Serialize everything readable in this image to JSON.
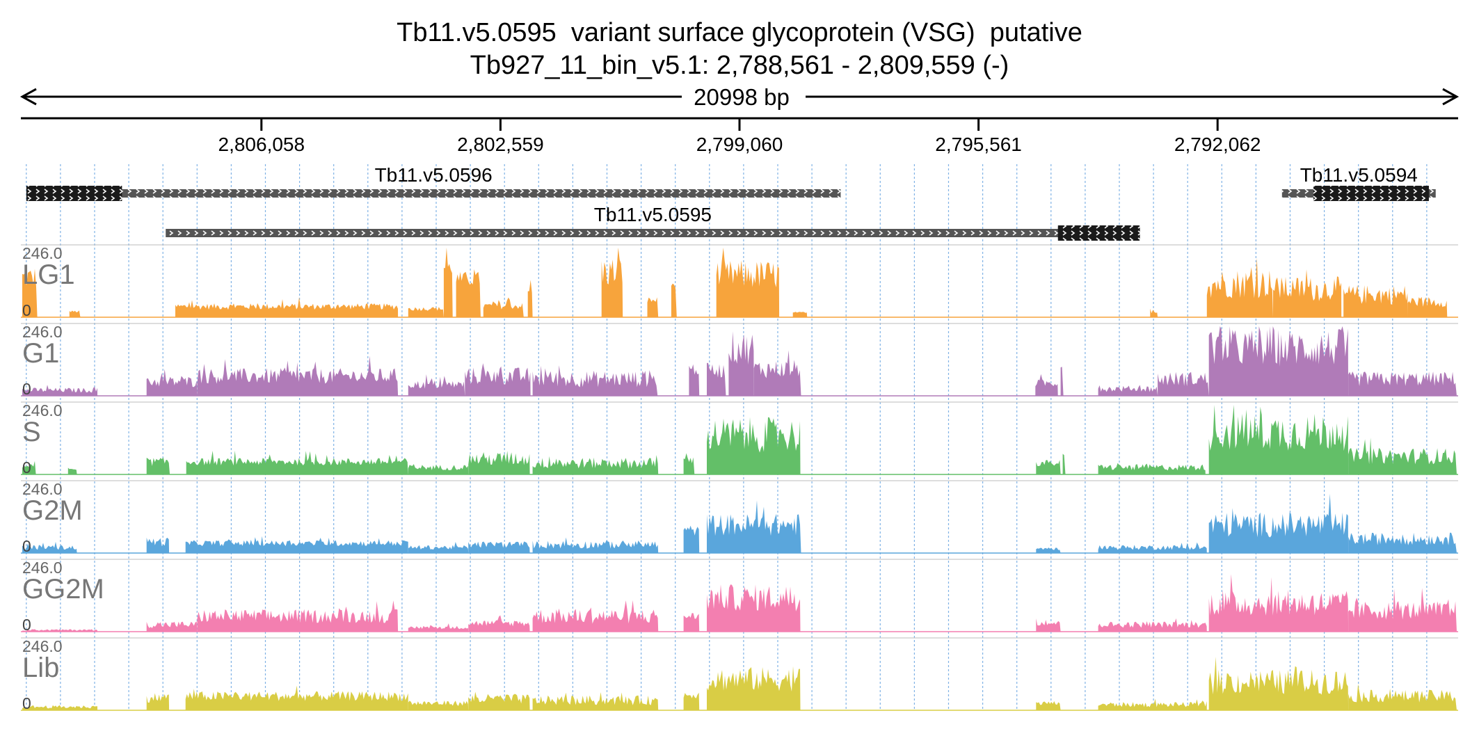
{
  "title_line1": "Tb11.v5.0595  variant surface glycoprotein (VSG)  putative",
  "title_line2": "Tb927_11_bin_v5.1: 2,788,561 - 2,809,559 (-)",
  "span_label": "20998 bp",
  "axis_ticks": [
    "2,806,058",
    "2,802,559",
    "2,799,060",
    "2,795,561",
    "2,792,062"
  ],
  "genes": [
    {
      "name": "Tb11.v5.0596"
    },
    {
      "name": "Tb11.v5.0595"
    },
    {
      "name": "Tb11.v5.0594"
    }
  ],
  "colors": {
    "LG1": "#f7a43c",
    "G1": "#b07bb8",
    "S": "#63bf68",
    "G2M": "#5aa6dc",
    "GG2M": "#f37fb0",
    "Lib": "#d9cd45",
    "gene_thin": "#555555",
    "gene_thick": "#1a1a1a",
    "grid": "#7fb2e5"
  },
  "chart_data": {
    "type": "area",
    "title": "Tb11.v5.0595  variant surface glycoprotein (VSG)  putative",
    "subtitle": "Tb927_11_bin_v5.1: 2,788,561 - 2,809,559 (-)",
    "x_range": [
      2809559,
      2788561
    ],
    "x_reversed": true,
    "y_range": [
      0,
      246.0
    ],
    "y_max_label": "246.0",
    "y_min_label": "0",
    "grid": true,
    "series": [
      {
        "name": "LG1",
        "color": "#f7a43c",
        "regions": [
          {
            "from": 2809559,
            "to": 2809339,
            "level": 140,
            "var": 0.3
          },
          {
            "from": 2808869,
            "to": 2808709,
            "level": 20,
            "var": 0.2
          },
          {
            "from": 2807319,
            "to": 2804059,
            "level": 38,
            "var": 0.3
          },
          {
            "from": 2803909,
            "to": 2803389,
            "level": 30,
            "var": 0.25
          },
          {
            "from": 2803389,
            "to": 2803259,
            "level": 175,
            "var": 0.15
          },
          {
            "from": 2803209,
            "to": 2802849,
            "level": 135,
            "var": 0.2
          },
          {
            "from": 2802809,
            "to": 2802219,
            "level": 40,
            "var": 0.3
          },
          {
            "from": 2802159,
            "to": 2802089,
            "level": 90,
            "var": 0.1
          },
          {
            "from": 2801079,
            "to": 2800769,
            "level": 160,
            "var": 0.35
          },
          {
            "from": 2800409,
            "to": 2800249,
            "level": 60,
            "var": 0.2
          },
          {
            "from": 2800059,
            "to": 2799979,
            "level": 115,
            "var": 0.1
          },
          {
            "from": 2799399,
            "to": 2798479,
            "level": 150,
            "var": 0.35
          },
          {
            "from": 2798279,
            "to": 2798069,
            "level": 15,
            "var": 0.3
          },
          {
            "from": 2793049,
            "to": 2792939,
            "level": 18,
            "var": 0.2
          },
          {
            "from": 2792219,
            "to": 2791249,
            "level": 120,
            "var": 0.45
          },
          {
            "from": 2791249,
            "to": 2790249,
            "level": 100,
            "var": 0.45
          },
          {
            "from": 2790219,
            "to": 2789279,
            "level": 80,
            "var": 0.45
          },
          {
            "from": 2789279,
            "to": 2788701,
            "level": 55,
            "var": 0.35
          }
        ]
      },
      {
        "name": "G1",
        "color": "#b07bb8",
        "regions": [
          {
            "from": 2809559,
            "to": 2808459,
            "level": 20,
            "var": 0.45
          },
          {
            "from": 2807739,
            "to": 2806999,
            "level": 50,
            "var": 0.4
          },
          {
            "from": 2806999,
            "to": 2804059,
            "level": 70,
            "var": 0.4
          },
          {
            "from": 2803909,
            "to": 2803079,
            "level": 40,
            "var": 0.4
          },
          {
            "from": 2803079,
            "to": 2802119,
            "level": 70,
            "var": 0.45
          },
          {
            "from": 2802089,
            "to": 2800259,
            "level": 60,
            "var": 0.5
          },
          {
            "from": 2799799,
            "to": 2799649,
            "level": 95,
            "var": 0.25
          },
          {
            "from": 2799539,
            "to": 2799259,
            "level": 90,
            "var": 0.3
          },
          {
            "from": 2799219,
            "to": 2798849,
            "level": 170,
            "var": 0.35
          },
          {
            "from": 2798849,
            "to": 2798159,
            "level": 95,
            "var": 0.35
          },
          {
            "from": 2794729,
            "to": 2794399,
            "level": 45,
            "var": 0.3
          },
          {
            "from": 2794359,
            "to": 2794319,
            "level": 105,
            "var": 0.05
          },
          {
            "from": 2793809,
            "to": 2792939,
            "level": 25,
            "var": 0.45
          },
          {
            "from": 2792939,
            "to": 2792189,
            "level": 60,
            "var": 0.45
          },
          {
            "from": 2792189,
            "to": 2790149,
            "level": 170,
            "var": 0.4
          },
          {
            "from": 2790149,
            "to": 2788561,
            "level": 60,
            "var": 0.45
          }
        ]
      },
      {
        "name": "S",
        "color": "#63bf68",
        "regions": [
          {
            "from": 2809559,
            "to": 2809359,
            "level": 30,
            "var": 0.3
          },
          {
            "from": 2808889,
            "to": 2808759,
            "level": 20,
            "var": 0.2
          },
          {
            "from": 2807739,
            "to": 2807399,
            "level": 45,
            "var": 0.35
          },
          {
            "from": 2807159,
            "to": 2803909,
            "level": 45,
            "var": 0.3
          },
          {
            "from": 2803909,
            "to": 2803029,
            "level": 25,
            "var": 0.4
          },
          {
            "from": 2803029,
            "to": 2802129,
            "level": 55,
            "var": 0.45
          },
          {
            "from": 2802089,
            "to": 2800249,
            "level": 40,
            "var": 0.5
          },
          {
            "from": 2799879,
            "to": 2799719,
            "level": 50,
            "var": 0.25
          },
          {
            "from": 2799539,
            "to": 2798169,
            "level": 140,
            "var": 0.45
          },
          {
            "from": 2794719,
            "to": 2794359,
            "level": 40,
            "var": 0.3
          },
          {
            "from": 2794329,
            "to": 2794289,
            "level": 70,
            "var": 0.05
          },
          {
            "from": 2793809,
            "to": 2792239,
            "level": 25,
            "var": 0.45
          },
          {
            "from": 2792189,
            "to": 2790149,
            "level": 150,
            "var": 0.45
          },
          {
            "from": 2790149,
            "to": 2788561,
            "level": 65,
            "var": 0.45
          }
        ]
      },
      {
        "name": "G2M",
        "color": "#5aa6dc",
        "regions": [
          {
            "from": 2809559,
            "to": 2808759,
            "level": 20,
            "var": 0.45
          },
          {
            "from": 2807739,
            "to": 2807409,
            "level": 40,
            "var": 0.4
          },
          {
            "from": 2807169,
            "to": 2803909,
            "level": 35,
            "var": 0.3
          },
          {
            "from": 2803909,
            "to": 2803029,
            "level": 20,
            "var": 0.4
          },
          {
            "from": 2803029,
            "to": 2802129,
            "level": 30,
            "var": 0.4
          },
          {
            "from": 2802089,
            "to": 2800249,
            "level": 30,
            "var": 0.5
          },
          {
            "from": 2799879,
            "to": 2799649,
            "level": 80,
            "var": 0.25
          },
          {
            "from": 2799539,
            "to": 2798159,
            "level": 100,
            "var": 0.4
          },
          {
            "from": 2794719,
            "to": 2794359,
            "level": 15,
            "var": 0.3
          },
          {
            "from": 2793809,
            "to": 2792219,
            "level": 20,
            "var": 0.45
          },
          {
            "from": 2792189,
            "to": 2790149,
            "level": 100,
            "var": 0.45
          },
          {
            "from": 2790149,
            "to": 2788561,
            "level": 50,
            "var": 0.45
          }
        ]
      },
      {
        "name": "GG2M",
        "color": "#f37fb0",
        "regions": [
          {
            "from": 2809559,
            "to": 2808459,
            "level": 6,
            "var": 0.5
          },
          {
            "from": 2807739,
            "to": 2806999,
            "level": 25,
            "var": 0.5
          },
          {
            "from": 2806999,
            "to": 2804059,
            "level": 55,
            "var": 0.45
          },
          {
            "from": 2803909,
            "to": 2803029,
            "level": 15,
            "var": 0.4
          },
          {
            "from": 2803029,
            "to": 2802129,
            "level": 30,
            "var": 0.4
          },
          {
            "from": 2802089,
            "to": 2800249,
            "level": 55,
            "var": 0.5
          },
          {
            "from": 2799879,
            "to": 2799649,
            "level": 55,
            "var": 0.25
          },
          {
            "from": 2799539,
            "to": 2798169,
            "level": 120,
            "var": 0.4
          },
          {
            "from": 2794719,
            "to": 2794359,
            "level": 30,
            "var": 0.3
          },
          {
            "from": 2793809,
            "to": 2792219,
            "level": 25,
            "var": 0.45
          },
          {
            "from": 2792189,
            "to": 2790149,
            "level": 100,
            "var": 0.45
          },
          {
            "from": 2790149,
            "to": 2788561,
            "level": 75,
            "var": 0.45
          }
        ]
      },
      {
        "name": "Lib",
        "color": "#d9cd45",
        "regions": [
          {
            "from": 2809559,
            "to": 2808459,
            "level": 12,
            "var": 0.5
          },
          {
            "from": 2807739,
            "to": 2807409,
            "level": 45,
            "var": 0.4
          },
          {
            "from": 2807169,
            "to": 2803909,
            "level": 50,
            "var": 0.35
          },
          {
            "from": 2803909,
            "to": 2803029,
            "level": 25,
            "var": 0.4
          },
          {
            "from": 2803029,
            "to": 2802129,
            "level": 40,
            "var": 0.45
          },
          {
            "from": 2802089,
            "to": 2800249,
            "level": 35,
            "var": 0.5
          },
          {
            "from": 2799879,
            "to": 2799649,
            "level": 55,
            "var": 0.25
          },
          {
            "from": 2799539,
            "to": 2798169,
            "level": 110,
            "var": 0.4
          },
          {
            "from": 2794719,
            "to": 2794359,
            "level": 25,
            "var": 0.3
          },
          {
            "from": 2793809,
            "to": 2792219,
            "level": 20,
            "var": 0.45
          },
          {
            "from": 2792189,
            "to": 2790149,
            "level": 100,
            "var": 0.45
          },
          {
            "from": 2790149,
            "to": 2788561,
            "level": 50,
            "var": 0.45
          }
        ]
      }
    ],
    "gene_models": [
      {
        "name": "Tb11.v5.0596",
        "start": 2809499,
        "end": 2797579,
        "thick": [
          2809499,
          2808099
        ],
        "row": 1
      },
      {
        "name": "Tb11.v5.0595",
        "start": 2807459,
        "end": 2793199,
        "thick": [
          2794399,
          2793199
        ],
        "row": 2
      },
      {
        "name": "Tb11.v5.0594",
        "start": 2791119,
        "end": 2788869,
        "thick": [
          2790659,
          2788969
        ],
        "row": 1
      }
    ]
  }
}
